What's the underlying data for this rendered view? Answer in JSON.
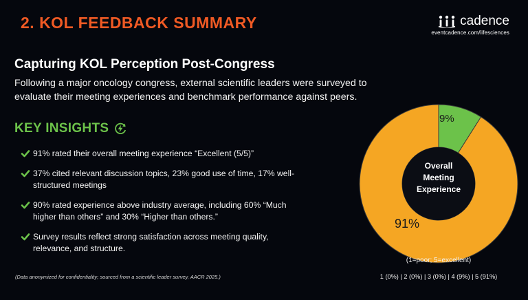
{
  "header": {
    "title": "2. KOL FEEDBACK SUMMARY",
    "brand_name": "cadence",
    "brand_url": "eventcadence.com/lifesciences",
    "brand_icon": "people-group-icon",
    "title_color": "#f05a24"
  },
  "section": {
    "subtitle": "Capturing KOL Perception Post-Congress",
    "intro": "Following a major oncology congress, external scientific leaders were surveyed to evaluate their meeting experiences and benchmark performance against peers."
  },
  "insights": {
    "title": "KEY INSIGHTS",
    "title_icon": "lightning-refresh-icon",
    "accent_color": "#6cc24a",
    "items": [
      {
        "text": "91% rated their overall meeting experience “Excellent (5/5)”",
        "icon": "check-icon"
      },
      {
        "text": "37% cited relevant discussion topics, 23% good use of time, 17% well-structured meetings",
        "icon": "check-icon"
      },
      {
        "text": "90% rated experience above industry average, including 60% “Much higher than others” and 30% “Higher than others.”",
        "icon": "check-icon"
      },
      {
        "text": "Survey results reflect strong satisfaction across meeting quality, relevance, and structure.",
        "icon": "check-icon"
      }
    ]
  },
  "footnote": "(Data anonymized for confidentiality; sourced from a scientific leader survey, AACR 2025.)",
  "chart": {
    "center_label_line1": "Overall",
    "center_label_line2": "Meeting",
    "center_label_line3": "Experience",
    "label_small": "9%",
    "label_large": "91%",
    "scale_note": "(1=poor; 5=excellent)",
    "scale_values": "1 (0%) | 2 (0%) | 3 (0%) | 4 (9%) | 5 (91%)"
  },
  "chart_data": {
    "type": "pie",
    "variant": "donut",
    "slices": [
      {
        "value": 9,
        "label": "9%",
        "color": "#6cc24a"
      },
      {
        "value": 91,
        "label": "91%",
        "color": "#f5a623"
      }
    ],
    "center_text": "Overall Meeting Experience"
  }
}
